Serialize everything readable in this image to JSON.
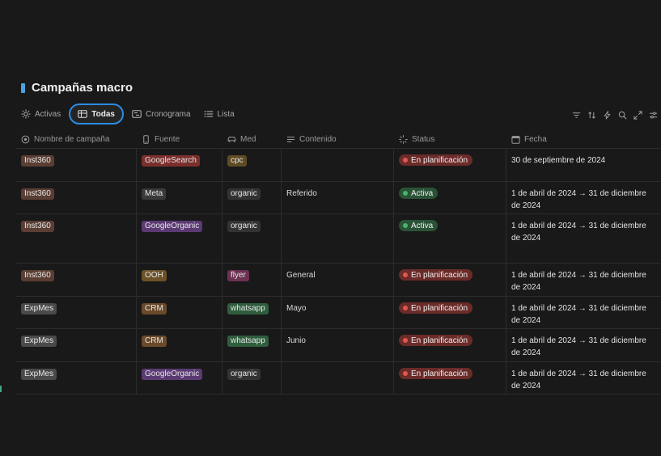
{
  "page": {
    "title": "Campañas macro",
    "accent": "#4aa3df"
  },
  "tabs": [
    {
      "label": "Activas",
      "icon": "sun-icon",
      "active": false
    },
    {
      "label": "Todas",
      "icon": "table-icon",
      "active": true
    },
    {
      "label": "Cronograma",
      "icon": "timeline-icon",
      "active": false
    },
    {
      "label": "Lista",
      "icon": "list-icon",
      "active": false
    }
  ],
  "toolbar": [
    "filter-icon",
    "sort-icon",
    "lightning-icon",
    "search-icon",
    "expand-icon",
    "settings-icon"
  ],
  "columns": [
    {
      "label": "Nombre de campaña",
      "icon": "target-icon"
    },
    {
      "label": "Fuente",
      "icon": "phone-icon"
    },
    {
      "label": "Med",
      "icon": "car-icon"
    },
    {
      "label": "Contenido",
      "icon": "text-lines-icon"
    },
    {
      "label": "Status",
      "icon": "loading-icon"
    },
    {
      "label": "Fecha",
      "icon": "calendar-icon"
    }
  ],
  "tag_colors": {
    "Inst360": "#5a3e33",
    "ExpMes": "#4a4a4a",
    "GoogleSearch": "#7a2f2c",
    "Meta": "#3a3a3a",
    "GoogleOrganic": "#5b3a74",
    "OOH": "#6b5227",
    "CRM": "#6b4a2a",
    "cpc": "#5e4b22",
    "organic": "#333333",
    "flyer": "#6c3153",
    "whatsapp": "#2f5d3e"
  },
  "status_colors": {
    "En planificación": {
      "bg": "#6a2b29",
      "dot": "#e0574f"
    },
    "Activa": {
      "bg": "#2a5236",
      "dot": "#4bb36a"
    }
  },
  "rows": [
    {
      "nombre": "Inst360",
      "fuente": "GoogleSearch",
      "med": "cpc",
      "contenido": "",
      "status": "En planificación",
      "fecha": "30 de septiembre de 2024"
    },
    {
      "nombre": "Inst360",
      "fuente": "Meta",
      "med": "organic",
      "contenido": "Referido",
      "status": "Activa",
      "fecha": "1 de abril de 2024 → 31 de diciembre de 2024"
    },
    {
      "nombre": "Inst360",
      "fuente": "GoogleOrganic",
      "med": "organic",
      "contenido": "",
      "status": "Activa",
      "fecha": "1 de abril de 2024 → 31 de diciembre de 2024"
    },
    {
      "nombre": "Inst360",
      "fuente": "OOH",
      "med": "flyer",
      "contenido": "General",
      "status": "En planificación",
      "fecha": "1 de abril de 2024 → 31 de diciembre de 2024"
    },
    {
      "nombre": "ExpMes",
      "fuente": "CRM",
      "med": "whatsapp",
      "contenido": "Mayo",
      "status": "En planificación",
      "fecha": "1 de abril de 2024 → 31 de diciembre de 2024"
    },
    {
      "nombre": "ExpMes",
      "fuente": "CRM",
      "med": "whatsapp",
      "contenido": "Junio",
      "status": "En planificación",
      "fecha": "1 de abril de 2024 → 31 de diciembre de 2024"
    },
    {
      "nombre": "ExpMes",
      "fuente": "GoogleOrganic",
      "med": "organic",
      "contenido": "",
      "status": "En planificación",
      "fecha": "1 de abril de 2024 → 31 de diciembre de 2024"
    }
  ]
}
